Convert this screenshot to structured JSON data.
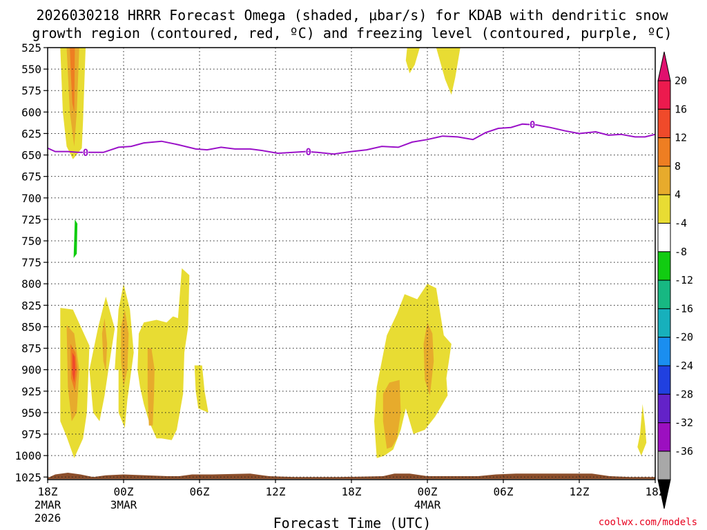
{
  "chart_data": {
    "type": "heatmap",
    "title": "2026030218 HRRR Forecast Omega (shaded, μbar/s) for KDAB with dendritic snow",
    "subtitle": "growth region (contoured, red, ºC) and freezing level (contoured, purple, ºC)",
    "xlabel": "Forecast Time (UTC)",
    "credit": "coolwx.com/models",
    "y_axis": {
      "ticks": [
        525,
        550,
        575,
        600,
        625,
        650,
        675,
        700,
        725,
        750,
        775,
        800,
        825,
        850,
        875,
        900,
        925,
        950,
        975,
        1000,
        1025
      ],
      "labels": [
        "525",
        "550",
        "575",
        "600",
        "625",
        "650",
        "675",
        "700",
        "725",
        "750",
        "775",
        "800",
        "825",
        "850",
        "875",
        "900",
        "925",
        "950",
        "975",
        "1000",
        "1025"
      ],
      "range": [
        525,
        1028
      ]
    },
    "x_axis": {
      "range_hours": [
        0,
        48
      ],
      "ticks": [
        {
          "h": 0,
          "label": "18Z",
          "sub1": "2MAR",
          "sub2": "2026"
        },
        {
          "h": 6,
          "label": "00Z",
          "sub1": "3MAR",
          "sub2": ""
        },
        {
          "h": 12,
          "label": "06Z",
          "sub1": "",
          "sub2": ""
        },
        {
          "h": 18,
          "label": "12Z",
          "sub1": "",
          "sub2": ""
        },
        {
          "h": 24,
          "label": "18Z",
          "sub1": "",
          "sub2": ""
        },
        {
          "h": 30,
          "label": "00Z",
          "sub1": "4MAR",
          "sub2": ""
        },
        {
          "h": 36,
          "label": "06Z",
          "sub1": "",
          "sub2": ""
        },
        {
          "h": 42,
          "label": "12Z",
          "sub1": "",
          "sub2": ""
        },
        {
          "h": 48,
          "label": "18Z",
          "sub1": "",
          "sub2": ""
        }
      ]
    },
    "colorbar": {
      "labels": [
        "20",
        "16",
        "12",
        "8",
        "4",
        "-4",
        "-8",
        "-12",
        "-16",
        "-20",
        "-24",
        "-28",
        "-32",
        "-36"
      ],
      "colors": [
        "#ec1a4e",
        "#f04a2a",
        "#ee7e22",
        "#e7ab2c",
        "#e8dc33",
        "#ffffff",
        "#11cc11",
        "#17b882",
        "#17b0bc",
        "#1a8ef0",
        "#2040e0",
        "#6322c8",
        "#9c0fc0",
        "#a8a8a8"
      ],
      "top_arrow_color": "#e0106e",
      "bottom_arrow_color": "#000000"
    },
    "freezing_level": {
      "color": "#9a10c8",
      "label": "0",
      "points": [
        [
          0,
          642
        ],
        [
          0.6,
          646
        ],
        [
          1.6,
          646
        ],
        [
          2.4,
          647
        ],
        [
          3.4,
          647
        ],
        [
          4.4,
          647
        ],
        [
          5.6,
          641
        ],
        [
          6.6,
          640
        ],
        [
          7.6,
          636
        ],
        [
          9.0,
          634
        ],
        [
          10.3,
          638
        ],
        [
          11.7,
          643
        ],
        [
          12.6,
          644
        ],
        [
          13.7,
          641
        ],
        [
          14.8,
          643
        ],
        [
          16.0,
          643
        ],
        [
          17.0,
          645
        ],
        [
          18.2,
          648
        ],
        [
          19.4,
          647
        ],
        [
          20.4,
          646
        ],
        [
          21.3,
          647
        ],
        [
          22.6,
          649
        ],
        [
          24.0,
          646
        ],
        [
          25.2,
          644
        ],
        [
          26.4,
          640
        ],
        [
          27.7,
          641
        ],
        [
          28.8,
          635
        ],
        [
          30.0,
          632
        ],
        [
          31.2,
          628
        ],
        [
          32.4,
          629
        ],
        [
          33.6,
          632
        ],
        [
          34.6,
          624
        ],
        [
          35.6,
          619
        ],
        [
          36.6,
          618
        ],
        [
          37.5,
          614
        ],
        [
          38.6,
          615
        ],
        [
          39.7,
          618
        ],
        [
          40.9,
          622
        ],
        [
          42.0,
          625
        ],
        [
          43.3,
          623
        ],
        [
          44.3,
          627
        ],
        [
          45.3,
          626
        ],
        [
          46.4,
          629
        ],
        [
          47.2,
          629
        ],
        [
          48.0,
          626
        ]
      ],
      "label_hours": [
        3.0,
        20.6,
        38.3
      ]
    },
    "regions": [
      {
        "level": "4",
        "pts": [
          [
            1.0,
            525
          ],
          [
            3.0,
            525
          ],
          [
            2.8,
            610
          ],
          [
            2.7,
            642
          ],
          [
            2.0,
            655
          ],
          [
            1.5,
            640
          ],
          [
            1.2,
            600
          ]
        ]
      },
      {
        "level": "8",
        "pts": [
          [
            1.5,
            525
          ],
          [
            2.5,
            525
          ],
          [
            2.3,
            600
          ],
          [
            2.1,
            640
          ],
          [
            1.75,
            600
          ]
        ]
      },
      {
        "level": "12",
        "pts": [
          [
            1.75,
            525
          ],
          [
            2.15,
            525
          ],
          [
            2.1,
            600
          ],
          [
            1.95,
            590
          ],
          [
            1.85,
            560
          ]
        ]
      },
      {
        "level": "4",
        "pts": [
          [
            28.4,
            525
          ],
          [
            29.4,
            525
          ],
          [
            29.0,
            545
          ],
          [
            28.6,
            555
          ],
          [
            28.3,
            540
          ]
        ]
      },
      {
        "level": "4",
        "pts": [
          [
            30.7,
            525
          ],
          [
            32.6,
            525
          ],
          [
            32.2,
            560
          ],
          [
            31.9,
            580
          ],
          [
            31.4,
            562
          ]
        ]
      },
      {
        "level": "-4",
        "pts": [
          [
            2.0,
            800
          ],
          [
            2.2,
            715
          ],
          [
            2.6,
            700
          ],
          [
            3.2,
            690
          ],
          [
            3.1,
            640
          ],
          [
            3.3,
            650
          ],
          [
            3.3,
            715
          ],
          [
            2.5,
            745
          ],
          [
            2.4,
            785
          ]
        ]
      },
      {
        "level": "-8",
        "pts": [
          [
            2.05,
            770
          ],
          [
            2.15,
            725
          ],
          [
            2.35,
            730
          ],
          [
            2.3,
            765
          ]
        ]
      },
      {
        "level": "-4",
        "pts": [
          [
            8.6,
            525
          ],
          [
            9.9,
            525
          ],
          [
            9.6,
            548
          ],
          [
            9.1,
            570
          ],
          [
            8.8,
            550
          ]
        ]
      },
      {
        "level": "-4",
        "pts": [
          [
            12.0,
            525
          ],
          [
            12.3,
            525
          ],
          [
            12.2,
            530
          ]
        ]
      },
      {
        "level": "-4",
        "pts": [
          [
            19.9,
            525
          ],
          [
            20.5,
            525
          ],
          [
            20.4,
            548
          ],
          [
            20.2,
            562
          ],
          [
            20.0,
            545
          ]
        ]
      },
      {
        "level": "-4",
        "pts": [
          [
            14.0,
            960
          ],
          [
            14.2,
            945
          ],
          [
            14.4,
            960
          ],
          [
            14.3,
            985
          ],
          [
            14.1,
            985
          ]
        ]
      },
      {
        "level": "4",
        "pts": [
          [
            1.0,
            828
          ],
          [
            2.0,
            830
          ],
          [
            3.3,
            872
          ],
          [
            3.1,
            950
          ],
          [
            2.8,
            980
          ],
          [
            2.1,
            1003
          ],
          [
            1.5,
            978
          ],
          [
            1.0,
            960
          ]
        ]
      },
      {
        "level": "8",
        "pts": [
          [
            1.5,
            848
          ],
          [
            2.1,
            858
          ],
          [
            2.5,
            900
          ],
          [
            2.3,
            950
          ],
          [
            1.9,
            960
          ],
          [
            1.6,
            920
          ]
        ]
      },
      {
        "level": "12",
        "pts": [
          [
            1.8,
            870
          ],
          [
            2.2,
            880
          ],
          [
            2.35,
            900
          ],
          [
            2.15,
            925
          ],
          [
            1.85,
            910
          ]
        ]
      },
      {
        "level": "16",
        "pts": [
          [
            1.95,
            880
          ],
          [
            2.15,
            885
          ],
          [
            2.2,
            900
          ],
          [
            2.1,
            915
          ],
          [
            1.95,
            905
          ]
        ]
      },
      {
        "level": "4",
        "pts": [
          [
            4.0,
            850
          ],
          [
            4.6,
            815
          ],
          [
            5.3,
            852
          ],
          [
            4.8,
            900
          ],
          [
            4.5,
            930
          ],
          [
            4.1,
            960
          ],
          [
            3.6,
            950
          ],
          [
            3.3,
            900
          ]
        ]
      },
      {
        "level": "8",
        "pts": [
          [
            4.3,
            858
          ],
          [
            4.5,
            840
          ],
          [
            4.7,
            870
          ],
          [
            4.6,
            902
          ],
          [
            4.4,
            890
          ]
        ]
      },
      {
        "level": "4",
        "pts": [
          [
            5.6,
            830
          ],
          [
            6.0,
            800
          ],
          [
            6.5,
            830
          ],
          [
            6.8,
            880
          ],
          [
            6.3,
            935
          ],
          [
            6.1,
            968
          ],
          [
            5.6,
            950
          ],
          [
            5.6,
            900
          ],
          [
            5.3,
            900
          ]
        ]
      },
      {
        "level": "8",
        "pts": [
          [
            5.8,
            850
          ],
          [
            6.1,
            830
          ],
          [
            6.4,
            858
          ],
          [
            6.3,
            900
          ],
          [
            6.0,
            920
          ],
          [
            5.8,
            890
          ]
        ]
      },
      {
        "level": "4",
        "pts": [
          [
            7.2,
            858
          ],
          [
            7.6,
            845
          ],
          [
            8.6,
            842
          ],
          [
            9.4,
            845
          ],
          [
            9.9,
            838
          ],
          [
            10.3,
            840
          ],
          [
            10.6,
            782
          ],
          [
            11.2,
            790
          ],
          [
            11.1,
            850
          ],
          [
            10.8,
            880
          ],
          [
            10.7,
            928
          ],
          [
            10.2,
            970
          ],
          [
            9.8,
            982
          ],
          [
            9.0,
            980
          ],
          [
            8.6,
            980
          ],
          [
            8.3,
            970
          ],
          [
            8.0,
            960
          ],
          [
            7.6,
            940
          ],
          [
            7.3,
            920
          ],
          [
            7.1,
            900
          ]
        ]
      },
      {
        "level": "8",
        "pts": [
          [
            7.9,
            875
          ],
          [
            8.2,
            875
          ],
          [
            8.45,
            900
          ],
          [
            8.4,
            930
          ],
          [
            8.3,
            965
          ],
          [
            8.0,
            965
          ],
          [
            7.9,
            925
          ]
        ]
      },
      {
        "level": "4",
        "pts": [
          [
            11.6,
            895
          ],
          [
            12.2,
            895
          ],
          [
            12.4,
            925
          ],
          [
            12.7,
            950
          ],
          [
            11.9,
            945
          ],
          [
            11.7,
            925
          ]
        ]
      },
      {
        "level": "4",
        "pts": [
          [
            46.8,
            975
          ],
          [
            47.0,
            940
          ],
          [
            47.2,
            965
          ],
          [
            47.3,
            985
          ],
          [
            46.9,
            1000
          ],
          [
            46.6,
            990
          ]
        ]
      },
      {
        "level": "4",
        "pts": [
          [
            26.0,
            920
          ],
          [
            26.8,
            860
          ],
          [
            27.6,
            835
          ],
          [
            28.2,
            812
          ],
          [
            29.2,
            818
          ],
          [
            30.0,
            800
          ],
          [
            30.7,
            805
          ],
          [
            31.3,
            860
          ],
          [
            31.9,
            870
          ],
          [
            31.5,
            910
          ],
          [
            31.6,
            930
          ],
          [
            31.2,
            940
          ],
          [
            30.6,
            955
          ],
          [
            29.8,
            970
          ],
          [
            28.9,
            975
          ],
          [
            28.3,
            945
          ],
          [
            27.9,
            970
          ],
          [
            27.3,
            993
          ],
          [
            26.6,
            1000
          ],
          [
            26.0,
            1003
          ],
          [
            25.8,
            960
          ]
        ]
      },
      {
        "level": "8",
        "pts": [
          [
            26.5,
            928
          ],
          [
            27.0,
            915
          ],
          [
            27.8,
            912
          ],
          [
            27.9,
            950
          ],
          [
            27.6,
            980
          ],
          [
            27.2,
            990
          ],
          [
            26.8,
            992
          ],
          [
            26.5,
            960
          ]
        ]
      },
      {
        "level": "8",
        "pts": [
          [
            29.7,
            870
          ],
          [
            30.0,
            845
          ],
          [
            30.4,
            858
          ],
          [
            30.5,
            890
          ],
          [
            30.2,
            930
          ],
          [
            29.8,
            912
          ]
        ]
      }
    ],
    "ground": {
      "color": "#8b4e2b",
      "points": [
        [
          0,
          1026
        ],
        [
          0.6,
          1022
        ],
        [
          1.6,
          1020
        ],
        [
          2.6,
          1022
        ],
        [
          3.6,
          1025
        ],
        [
          4.6,
          1023
        ],
        [
          6.0,
          1022
        ],
        [
          9.5,
          1024
        ],
        [
          10.4,
          1024
        ],
        [
          11.4,
          1022
        ],
        [
          13.0,
          1022
        ],
        [
          16.0,
          1021
        ],
        [
          17.5,
          1024
        ],
        [
          19.5,
          1025
        ],
        [
          23.0,
          1025
        ],
        [
          26.5,
          1024
        ],
        [
          27.4,
          1021
        ],
        [
          28.6,
          1021
        ],
        [
          30.0,
          1024
        ],
        [
          34.0,
          1024
        ],
        [
          35.4,
          1022
        ],
        [
          37.0,
          1021
        ],
        [
          43.0,
          1021
        ],
        [
          44.4,
          1024
        ],
        [
          46.0,
          1025
        ],
        [
          48.0,
          1025
        ]
      ]
    }
  }
}
